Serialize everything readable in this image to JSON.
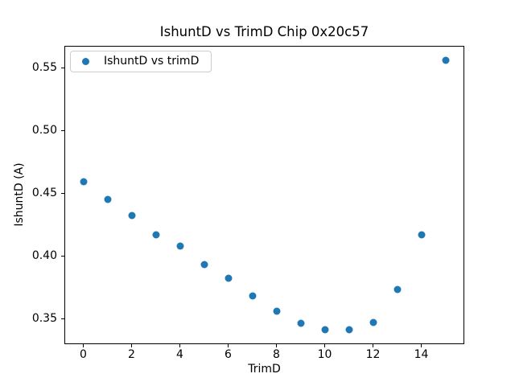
{
  "chart_data": {
    "type": "scatter",
    "title": "IshuntD vs TrimD Chip 0x20c57",
    "xlabel": "TrimD",
    "ylabel": "IshuntD (A)",
    "legend": [
      {
        "label": "IshuntD vs trimD",
        "marker": "circle",
        "position": "upper left"
      }
    ],
    "marker_color": "#1f77b4",
    "grid": false,
    "x": [
      0,
      1,
      2,
      3,
      4,
      5,
      6,
      7,
      8,
      9,
      10,
      11,
      12,
      13,
      14,
      15
    ],
    "y": [
      0.459,
      0.445,
      0.432,
      0.417,
      0.408,
      0.393,
      0.382,
      0.368,
      0.356,
      0.346,
      0.341,
      0.341,
      0.347,
      0.373,
      0.417,
      0.556
    ],
    "xlim": [
      -0.75,
      15.75
    ],
    "ylim": [
      0.3302,
      0.5668
    ],
    "xticks": [
      0,
      2,
      4,
      6,
      8,
      10,
      12,
      14
    ],
    "xtick_labels": [
      "0",
      "2",
      "4",
      "6",
      "8",
      "10",
      "12",
      "14"
    ],
    "yticks": [
      0.35,
      0.4,
      0.45,
      0.5,
      0.55
    ],
    "ytick_labels": [
      "0.35",
      "0.40",
      "0.45",
      "0.50",
      "0.55"
    ],
    "colors": {
      "marker": "#1f77b4",
      "spine": "#000000",
      "legend_border": "#cccccc",
      "background": "#ffffff"
    }
  }
}
